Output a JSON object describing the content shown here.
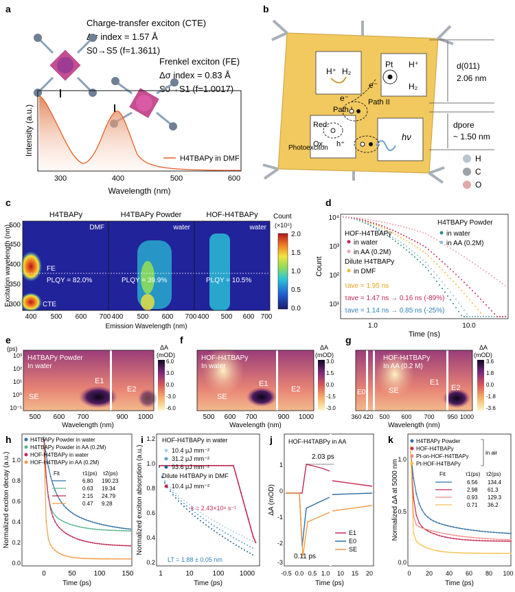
{
  "panel_letters": [
    "a",
    "b",
    "c",
    "d",
    "e",
    "f",
    "g",
    "h",
    "i",
    "j",
    "k"
  ],
  "a": {
    "cte_title": "Charge-transfer exciton (CTE)",
    "cte_index": "Δσ index = 1.57 Å",
    "cte_trans": "S0→S5 (f=1.3611)",
    "fe_title": "Frenkel exciton (FE)",
    "fe_index": "Δσ index = 0.83 Å",
    "fe_trans": "S0→S1 (f=1.0017)",
    "legend": "H4TBAPy in DMF",
    "xlabel": "Wavelength (nm)",
    "ylabel": "Intensity (a.u.)",
    "xticks": [
      "300",
      "400",
      "500",
      "600"
    ]
  },
  "b": {
    "h_plus": "H⁺",
    "h2": "H₂",
    "pt": "Pt",
    "h_plus2": "H⁺",
    "h2_2": "H₂",
    "e1": "e⁻",
    "e2": "e⁻",
    "path1": "Path I",
    "path2": "Path II",
    "red": "Red.",
    "ox": "Ox.",
    "hplus3": "h⁺",
    "hv": "hν",
    "photoexciton": "Photoexciton",
    "d011_label": "d(011)",
    "d011_val": "2.06 nm",
    "dpore_label": "dpore",
    "dpore_val": "~ 1.50 nm",
    "legend": [
      "H",
      "C",
      "O"
    ],
    "legend_colors": [
      "#b9c4cf",
      "#9aa2a8",
      "#e0a8a8"
    ]
  },
  "c": {
    "titles": [
      "H4TBAPy",
      "H4TBAPy Powder",
      "HOF-H4TBAPy"
    ],
    "solvents": [
      "DMF",
      "water",
      "water"
    ],
    "plqy": [
      "PLQY = 82.0%",
      "PLQY = 39.9%",
      "PLQY = 10.5%"
    ],
    "fe": "FE",
    "cte": "CTE",
    "ylabel": "Excitation wavelength (nm)",
    "xlabel": "Emission Wavelength (nm)",
    "yticks": [
      "500",
      "450",
      "400",
      "350",
      "300"
    ],
    "xticks": [
      "400",
      "500",
      "600",
      "700"
    ],
    "cbar_title": "Count",
    "cbar_unit": "(×10⁵)",
    "cbar_ticks": [
      "2.0",
      "1.5",
      "1.0",
      "0.5",
      "0.0"
    ]
  },
  "d": {
    "ylabel": "Count",
    "xlabel": "Time (ns)",
    "yticks": [
      "10⁴",
      "10³",
      "10²",
      "10¹"
    ],
    "xticks": [
      "1.0",
      "10.0"
    ],
    "legend_right_title": "H4TBAPy Powder",
    "legend_right": [
      "in water",
      "in AA (0.2M)"
    ],
    "legend_hof_title": "HOF-H4TBAPy",
    "legend_hof": [
      "in water",
      "in AA (0.2M)"
    ],
    "legend_dil_title": "Dilute H4TBAPy",
    "legend_dil": [
      "in DMF"
    ],
    "tau1": "τave = 1.95 ns",
    "tau2": "τave = 1.47 ns → 0.16 ns (-89%)",
    "tau3": "τave = 1.14 ns → 0.85 ns (-25%)"
  },
  "e": {
    "unit": "(ps)",
    "title": "H4TBAPy Powder",
    "sub": "In water",
    "labels": [
      "SE",
      "E1",
      "E2"
    ],
    "xticks": [
      "500",
      "600",
      "700",
      "900",
      "1000"
    ],
    "xlabel": "Wavelength (nm)",
    "cbar_title": "ΔA",
    "cbar_unit": "(mOD)",
    "cbar_ticks": [
      "6.0",
      "3.0",
      "0.0",
      "-3.0",
      "-6.0"
    ],
    "yticks": [
      "10³",
      "10²",
      "10¹",
      "10⁰",
      "10⁻¹"
    ]
  },
  "f": {
    "title": "HOF-H4TBAPy",
    "sub": "In water",
    "labels": [
      "SE",
      "E1",
      "E2"
    ],
    "xticks": [
      "500",
      "600",
      "700",
      "900",
      "1000"
    ],
    "xlabel": "Wavelength (nm)",
    "cbar_title": "ΔA",
    "cbar_unit": "(mOD)",
    "cbar_ticks": [
      "3.0",
      "1.5",
      "0.0",
      "-1.5",
      "-3.0"
    ]
  },
  "g": {
    "title": "HOF-H4TBAPy",
    "sub": "In AA (0.2 M)",
    "labels": [
      "E0",
      "SE",
      "E1",
      "E2"
    ],
    "xticks": [
      "360",
      "420",
      "500",
      "600",
      "700",
      "950",
      "1000"
    ],
    "xlabel": "Wavelength (nm)",
    "cbar_title": "ΔA",
    "cbar_unit": "(mOD)",
    "cbar_ticks": [
      "3.6",
      "1.8",
      "0.0",
      "-1.8",
      "-3.6"
    ]
  },
  "h": {
    "ylabel": "Normalized exciton decay (a.u.)",
    "xlabel": "Time (ps)",
    "legend": [
      "H4TBAPy Powder in water",
      "H4TBAPy Powder in AA (0.2M)",
      "HOF-H4TBAPy in water",
      "HOF-H4TBAPy in AA (0.2M)"
    ],
    "colors": [
      "#2f6fa3",
      "#55b68d",
      "#c2274f",
      "#f29a45"
    ],
    "fit_header": [
      "Fit",
      "τ1(ps)",
      "τ2(ps)"
    ],
    "fits": [
      [
        "6.80",
        "190.23"
      ],
      [
        "0.63",
        "19.34"
      ],
      [
        "2.15",
        "24.79"
      ],
      [
        "0.47",
        "9.28"
      ]
    ],
    "xticks": [
      "0",
      "50",
      "100",
      "150"
    ],
    "yticks": [
      "1.0",
      "0.8",
      "0.6",
      "0.4",
      "0.2",
      "0.0"
    ]
  },
  "i": {
    "ylabel": "Normalized exciton absorption (a.u.)",
    "xlabel": "Time (ps)",
    "legend_title": "HOF-H4TBAPy in water",
    "legend": [
      "10.4 μJ mm⁻²",
      "31.2 μJ mm⁻²",
      "93.6 μJ mm⁻²"
    ],
    "legend2_title": "Dilute H4TBAPy in DMF",
    "legend2": [
      "10.4 μJ mm⁻²"
    ],
    "k_label": "k = 2.43×10⁸ s⁻¹",
    "tau_label": "LT = 1.88 ± 0.05 nm",
    "xticks": [
      "1",
      "10",
      "100",
      "1000"
    ],
    "yticks": [
      "1.2",
      "1.0",
      "0.8",
      "0.6",
      "0.4",
      "0.2"
    ]
  },
  "j": {
    "title": "HOF-H4TABPy in AA",
    "t1": "2.03 ps",
    "t2": "0.11 ps",
    "ylabel": "ΔA (mOD)",
    "xlabel": "Time (ps)",
    "legend": [
      "E1",
      "E0",
      "SE"
    ],
    "colors": [
      "#c2274f",
      "#2f6fa3",
      "#f29a45"
    ],
    "xticks": [
      "-0.5",
      "0.0",
      "0.5",
      "1.0",
      "10",
      "15",
      "20"
    ],
    "yticks": [
      "1",
      "0",
      "-1",
      "-2",
      "-3"
    ]
  },
  "k": {
    "ylabel": "Normalized ΔA at 5000 nm",
    "xlabel": "Time (ps)",
    "legend": [
      "H4TBAPy Powder",
      "HOF-H4TBAPy",
      "Pt-on-HOF-H4TBAPy",
      "Pt-HOF-H4TBAPy"
    ],
    "in_air": "in air",
    "colors": [
      "#2f6fa3",
      "#c2274f",
      "#f08a88",
      "#f5c04a"
    ],
    "fit_header": [
      "Fit",
      "τ1(ps)",
      "τ2(ps)"
    ],
    "fits": [
      [
        "6.56",
        "134.4"
      ],
      [
        "2.98",
        "61.3"
      ],
      [
        "0.93",
        "129.3"
      ],
      [
        "0.71",
        "36.2"
      ]
    ],
    "xticks": [
      "0",
      "20",
      "40",
      "60",
      "80",
      "100"
    ],
    "yticks": [
      "1.0",
      "0.5",
      "0.0"
    ]
  }
}
